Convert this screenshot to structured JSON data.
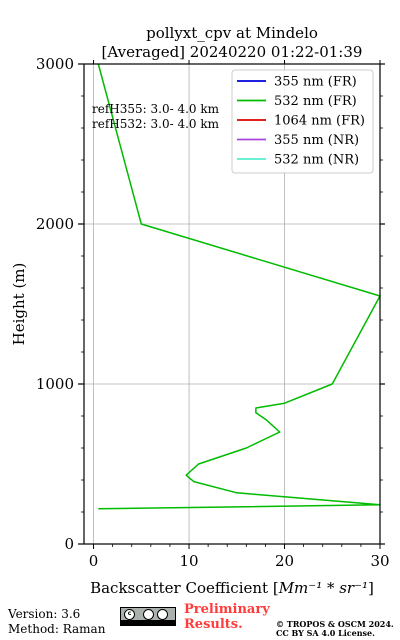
{
  "chart_data": {
    "type": "line",
    "title": "pollyxt_cpv at Mindelo",
    "subtitle": "[Averaged] 20240220 01:22-01:39",
    "xlabel_prefix": "Backscatter Coefficient [",
    "xlabel_math": "Mm⁻¹ * sr⁻¹",
    "xlabel_suffix": "]",
    "ylabel": "Height (m)",
    "xlim": [
      -1,
      30
    ],
    "ylim": [
      0,
      3000
    ],
    "x_ticks": [
      "0",
      "10",
      "20",
      "30"
    ],
    "y_ticks": [
      "0",
      "1000",
      "2000",
      "3000"
    ],
    "grid": true,
    "legend_position": "top-right",
    "annotations": [
      "refH355:  3.0- 4.0 km",
      "refH532:  3.0- 4.0 km"
    ],
    "series": [
      {
        "name": "355 nm (FR)",
        "color": "#0000dd",
        "x": [],
        "y": []
      },
      {
        "name": "532 nm (FR)",
        "color": "#00bb00",
        "x": [
          0.5,
          5,
          30,
          25,
          20,
          17,
          17,
          18,
          19.5,
          16,
          11,
          9.7,
          10.5,
          15,
          30,
          0.5
        ],
        "y": [
          3000,
          2000,
          1550,
          1000,
          880,
          850,
          820,
          780,
          700,
          600,
          500,
          430,
          390,
          320,
          245,
          220
        ]
      },
      {
        "name": "1064 nm (FR)",
        "color": "#dd0000",
        "x": [],
        "y": []
      },
      {
        "name": "355 nm (NR)",
        "color": "#aa44dd",
        "x": [],
        "y": []
      },
      {
        "name": "532 nm (NR)",
        "color": "#55eecc",
        "x": [],
        "y": []
      }
    ]
  },
  "footer": {
    "version": "Version: 3.6",
    "method": "Method: Raman",
    "preliminary_line1": "Preliminary",
    "preliminary_line2": "Results.",
    "copyright_line1": "© TROPOS & OSCM 2024.",
    "copyright_line2": "CC BY SA 4.0 License.",
    "license_badge": "cc-by-sa-icon"
  }
}
